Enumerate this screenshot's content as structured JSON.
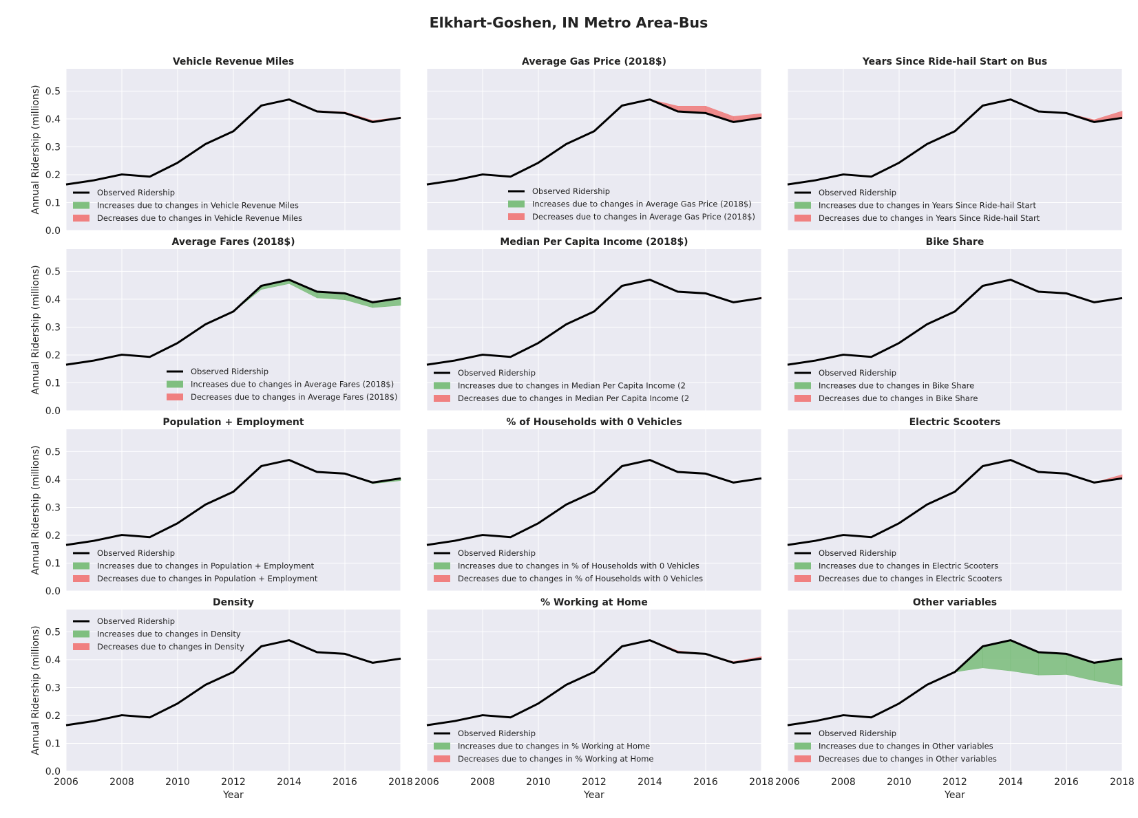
{
  "title": "Elkhart-Goshen, IN Metro Area-Bus",
  "colors": {
    "panel_background": "#eaeaf2",
    "grid": "#ffffff",
    "observed": "#000000",
    "increase": "#7fbf7f",
    "decrease": "#f08080"
  },
  "chart_data": {
    "type": "area",
    "x": [
      2006,
      2007,
      2008,
      2009,
      2010,
      2011,
      2012,
      2013,
      2014,
      2015,
      2016,
      2017,
      2018
    ],
    "observed": [
      0.165,
      0.18,
      0.201,
      0.193,
      0.243,
      0.31,
      0.356,
      0.448,
      0.47,
      0.427,
      0.421,
      0.389,
      0.404
    ],
    "xlim": [
      2006,
      2018
    ],
    "ylim": [
      0,
      0.58
    ],
    "xticks": [
      "2006",
      "2008",
      "2010",
      "2012",
      "2014",
      "2016",
      "2018"
    ],
    "yticks": [
      "0.0",
      "0.1",
      "0.2",
      "0.3",
      "0.4",
      "0.5"
    ],
    "xlabel": "Year",
    "ylabel": "Annual Ridership (millions)",
    "legend_observed": "Observed Ridership",
    "grid": true,
    "panels": [
      {
        "title": "Vehicle Revenue Miles",
        "legend_loc": "lower-left",
        "legend_increase": "Increases due to changes in Vehicle Revenue Miles",
        "legend_decrease": "Decreases due to changes in Vehicle Revenue Miles",
        "counterfactual": [
          0.165,
          0.18,
          0.201,
          0.193,
          0.243,
          0.31,
          0.356,
          0.448,
          0.47,
          0.43,
          0.425,
          0.395,
          0.406
        ]
      },
      {
        "title": "Average Gas Price (2018$)",
        "legend_loc": "lower-center",
        "legend_increase": "Increases due to changes in Average Gas Price (2018$)",
        "legend_decrease": "Decreases due to changes in Average Gas Price (2018$)",
        "counterfactual": [
          0.165,
          0.18,
          0.201,
          0.193,
          0.243,
          0.31,
          0.356,
          0.448,
          0.47,
          0.446,
          0.446,
          0.409,
          0.419
        ]
      },
      {
        "title": "Years Since Ride-hail Start on Bus",
        "legend_loc": "lower-left",
        "legend_increase": "Increases due to changes in Years Since Ride-hail Start",
        "legend_decrease": "Decreases due to changes in Years Since Ride-hail Start",
        "counterfactual": [
          0.165,
          0.18,
          0.201,
          0.193,
          0.243,
          0.31,
          0.356,
          0.448,
          0.47,
          0.427,
          0.421,
          0.397,
          0.428
        ]
      },
      {
        "title": "Average Fares (2018$)",
        "legend_loc": "lower-right",
        "legend_increase": "Increases due to changes in Average Fares (2018$)",
        "legend_decrease": "Decreases due to changes in Average Fares (2018$)",
        "counterfactual": [
          0.165,
          0.18,
          0.201,
          0.193,
          0.243,
          0.31,
          0.356,
          0.435,
          0.456,
          0.405,
          0.398,
          0.37,
          0.378
        ]
      },
      {
        "title": "Median Per Capita Income (2018$)",
        "legend_loc": "lower-left",
        "legend_increase": "Increases due to changes in Median Per Capita Income (2",
        "legend_decrease": "Decreases due to changes in Median Per Capita Income (2",
        "counterfactual": [
          0.165,
          0.18,
          0.201,
          0.193,
          0.243,
          0.31,
          0.356,
          0.448,
          0.47,
          0.427,
          0.421,
          0.391,
          0.407
        ]
      },
      {
        "title": "Bike Share",
        "legend_loc": "lower-left",
        "legend_increase": "Increases due to changes in Bike Share",
        "legend_decrease": "Decreases due to changes in Bike Share",
        "counterfactual": [
          0.165,
          0.18,
          0.201,
          0.193,
          0.243,
          0.31,
          0.356,
          0.448,
          0.47,
          0.427,
          0.421,
          0.389,
          0.404
        ]
      },
      {
        "title": "Population + Employment",
        "legend_loc": "lower-left",
        "legend_increase": "Increases due to changes in Population + Employment",
        "legend_decrease": "Decreases due to changes in Population + Employment",
        "counterfactual": [
          0.165,
          0.18,
          0.201,
          0.193,
          0.243,
          0.31,
          0.356,
          0.448,
          0.47,
          0.427,
          0.419,
          0.385,
          0.396
        ]
      },
      {
        "title": "% of Households with 0 Vehicles",
        "legend_loc": "lower-left",
        "legend_increase": "Increases due to changes in % of Households with 0 Vehicles",
        "legend_decrease": "Decreases due to changes in % of Households with 0 Vehicles",
        "counterfactual": [
          0.165,
          0.18,
          0.201,
          0.193,
          0.243,
          0.31,
          0.356,
          0.448,
          0.47,
          0.427,
          0.421,
          0.389,
          0.404
        ]
      },
      {
        "title": "Electric Scooters",
        "legend_loc": "lower-left",
        "legend_increase": "Increases due to changes in Electric Scooters",
        "legend_decrease": "Decreases due to changes in Electric Scooters",
        "counterfactual": [
          0.165,
          0.18,
          0.201,
          0.193,
          0.243,
          0.31,
          0.356,
          0.448,
          0.47,
          0.427,
          0.421,
          0.389,
          0.417
        ]
      },
      {
        "title": "Density",
        "legend_loc": "upper-left",
        "legend_increase": "Increases due to changes in Density",
        "legend_decrease": "Decreases due to changes in Density",
        "counterfactual": [
          0.165,
          0.18,
          0.201,
          0.193,
          0.243,
          0.31,
          0.356,
          0.448,
          0.47,
          0.427,
          0.421,
          0.389,
          0.404
        ]
      },
      {
        "title": "% Working at Home",
        "legend_loc": "lower-left",
        "legend_increase": "Increases due to changes in % Working at Home",
        "legend_decrease": "Decreases due to changes in % Working at Home",
        "counterfactual": [
          0.165,
          0.18,
          0.201,
          0.193,
          0.243,
          0.31,
          0.356,
          0.448,
          0.472,
          0.432,
          0.422,
          0.393,
          0.411
        ]
      },
      {
        "title": "Other variables",
        "legend_loc": "lower-left",
        "legend_increase": "Increases due to changes in Other variables",
        "legend_decrease": "Decreases due to changes in Other variables",
        "counterfactual": [
          0.165,
          0.18,
          0.201,
          0.193,
          0.243,
          0.31,
          0.356,
          0.371,
          0.36,
          0.345,
          0.347,
          0.325,
          0.307
        ]
      }
    ]
  }
}
